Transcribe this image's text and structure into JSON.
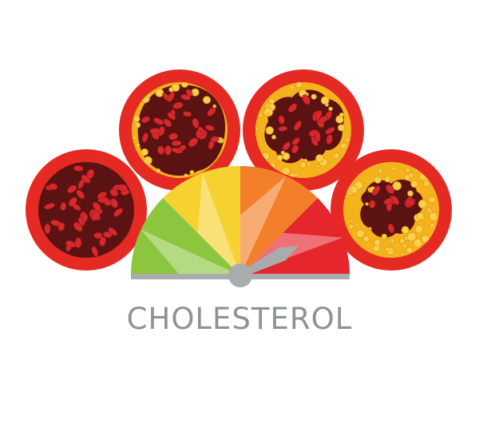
{
  "title": "CHOLESTEROL",
  "colors": {
    "artery_wall": "#e52a24",
    "blood_bg": "#5b1212",
    "red_cell": "#d8282c",
    "plaque": "#f4b21c",
    "plaque_bubble": "#f8d04a",
    "gauge_green": "#8cc63f",
    "gauge_yellow": "#f6d231",
    "gauge_orange": "#f37f2b",
    "gauge_red": "#e5262c",
    "gauge_base": "#a9acac",
    "title_text": "#8d9294"
  },
  "gauge": {
    "segments": [
      "green",
      "yellow",
      "orange",
      "red"
    ],
    "needle_level": 0.85
  },
  "arteries": [
    {
      "name": "artery-healthy",
      "plaque_level": 0.0
    },
    {
      "name": "artery-mild",
      "plaque_level": 0.15
    },
    {
      "name": "artery-moderate",
      "plaque_level": 0.4
    },
    {
      "name": "artery-severe",
      "plaque_level": 0.7
    }
  ]
}
